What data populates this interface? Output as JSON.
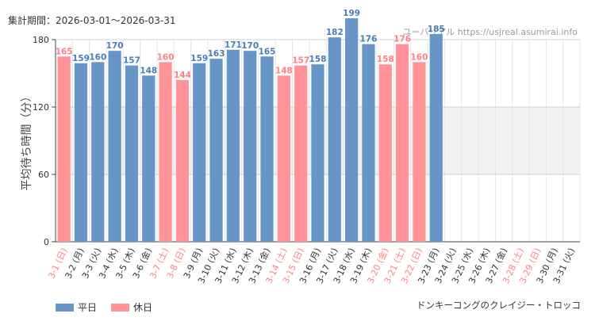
{
  "header": {
    "period_label": "集計期間：2026-03-01～2026-03-31",
    "watermark": "ユーバリアル https://usjreal.asumirai.info"
  },
  "legend": {
    "weekday_label": "平日",
    "holiday_label": "休日"
  },
  "colors": {
    "weekday": "#6795c5",
    "holiday": "#ff9397",
    "holiday_text": "#ff7f84",
    "weekday_text": "#4a7cb8",
    "band": "#f2f2f2",
    "grid": "#e6e6e6"
  },
  "attraction_name": "ドンキーコングのクレイジー・トロッコ",
  "chart_data": {
    "type": "bar",
    "ylabel": "平均待ち時間（分）",
    "ylim": [
      0,
      180
    ],
    "yticks": [
      0,
      60,
      120,
      180
    ],
    "band": [
      60,
      120
    ],
    "categories": [
      "3-1 (日)",
      "3-2 (月)",
      "3-3 (火)",
      "3-4 (水)",
      "3-5 (木)",
      "3-6 (金)",
      "3-7 (土)",
      "3-8 (日)",
      "3-9 (月)",
      "3-10 (火)",
      "3-11 (水)",
      "3-12 (木)",
      "3-13 (金)",
      "3-14 (土)",
      "3-15 (日)",
      "3-16 (月)",
      "3-17 (火)",
      "3-18 (水)",
      "3-19 (木)",
      "3-20 (金)",
      "3-21 (土)",
      "3-22 (日)",
      "3-23 (月)",
      "3-24 (火)",
      "3-25 (水)",
      "3-26 (木)",
      "3-27 (金)",
      "3-28 (土)",
      "3-29 (日)",
      "3-30 (月)",
      "3-31 (火)"
    ],
    "values": [
      165,
      159,
      160,
      170,
      157,
      148,
      160,
      144,
      159,
      163,
      171,
      170,
      165,
      148,
      157,
      158,
      182,
      199,
      176,
      158,
      176,
      160,
      185,
      null,
      null,
      null,
      null,
      null,
      null,
      null,
      null
    ],
    "day_types": [
      "holiday",
      "weekday",
      "weekday",
      "weekday",
      "weekday",
      "weekday",
      "holiday",
      "holiday",
      "weekday",
      "weekday",
      "weekday",
      "weekday",
      "weekday",
      "holiday",
      "holiday",
      "weekday",
      "weekday",
      "weekday",
      "weekday",
      "holiday",
      "holiday",
      "holiday",
      "weekday",
      "weekday",
      "weekday",
      "weekday",
      "weekday",
      "holiday",
      "holiday",
      "weekday",
      "weekday"
    ]
  }
}
